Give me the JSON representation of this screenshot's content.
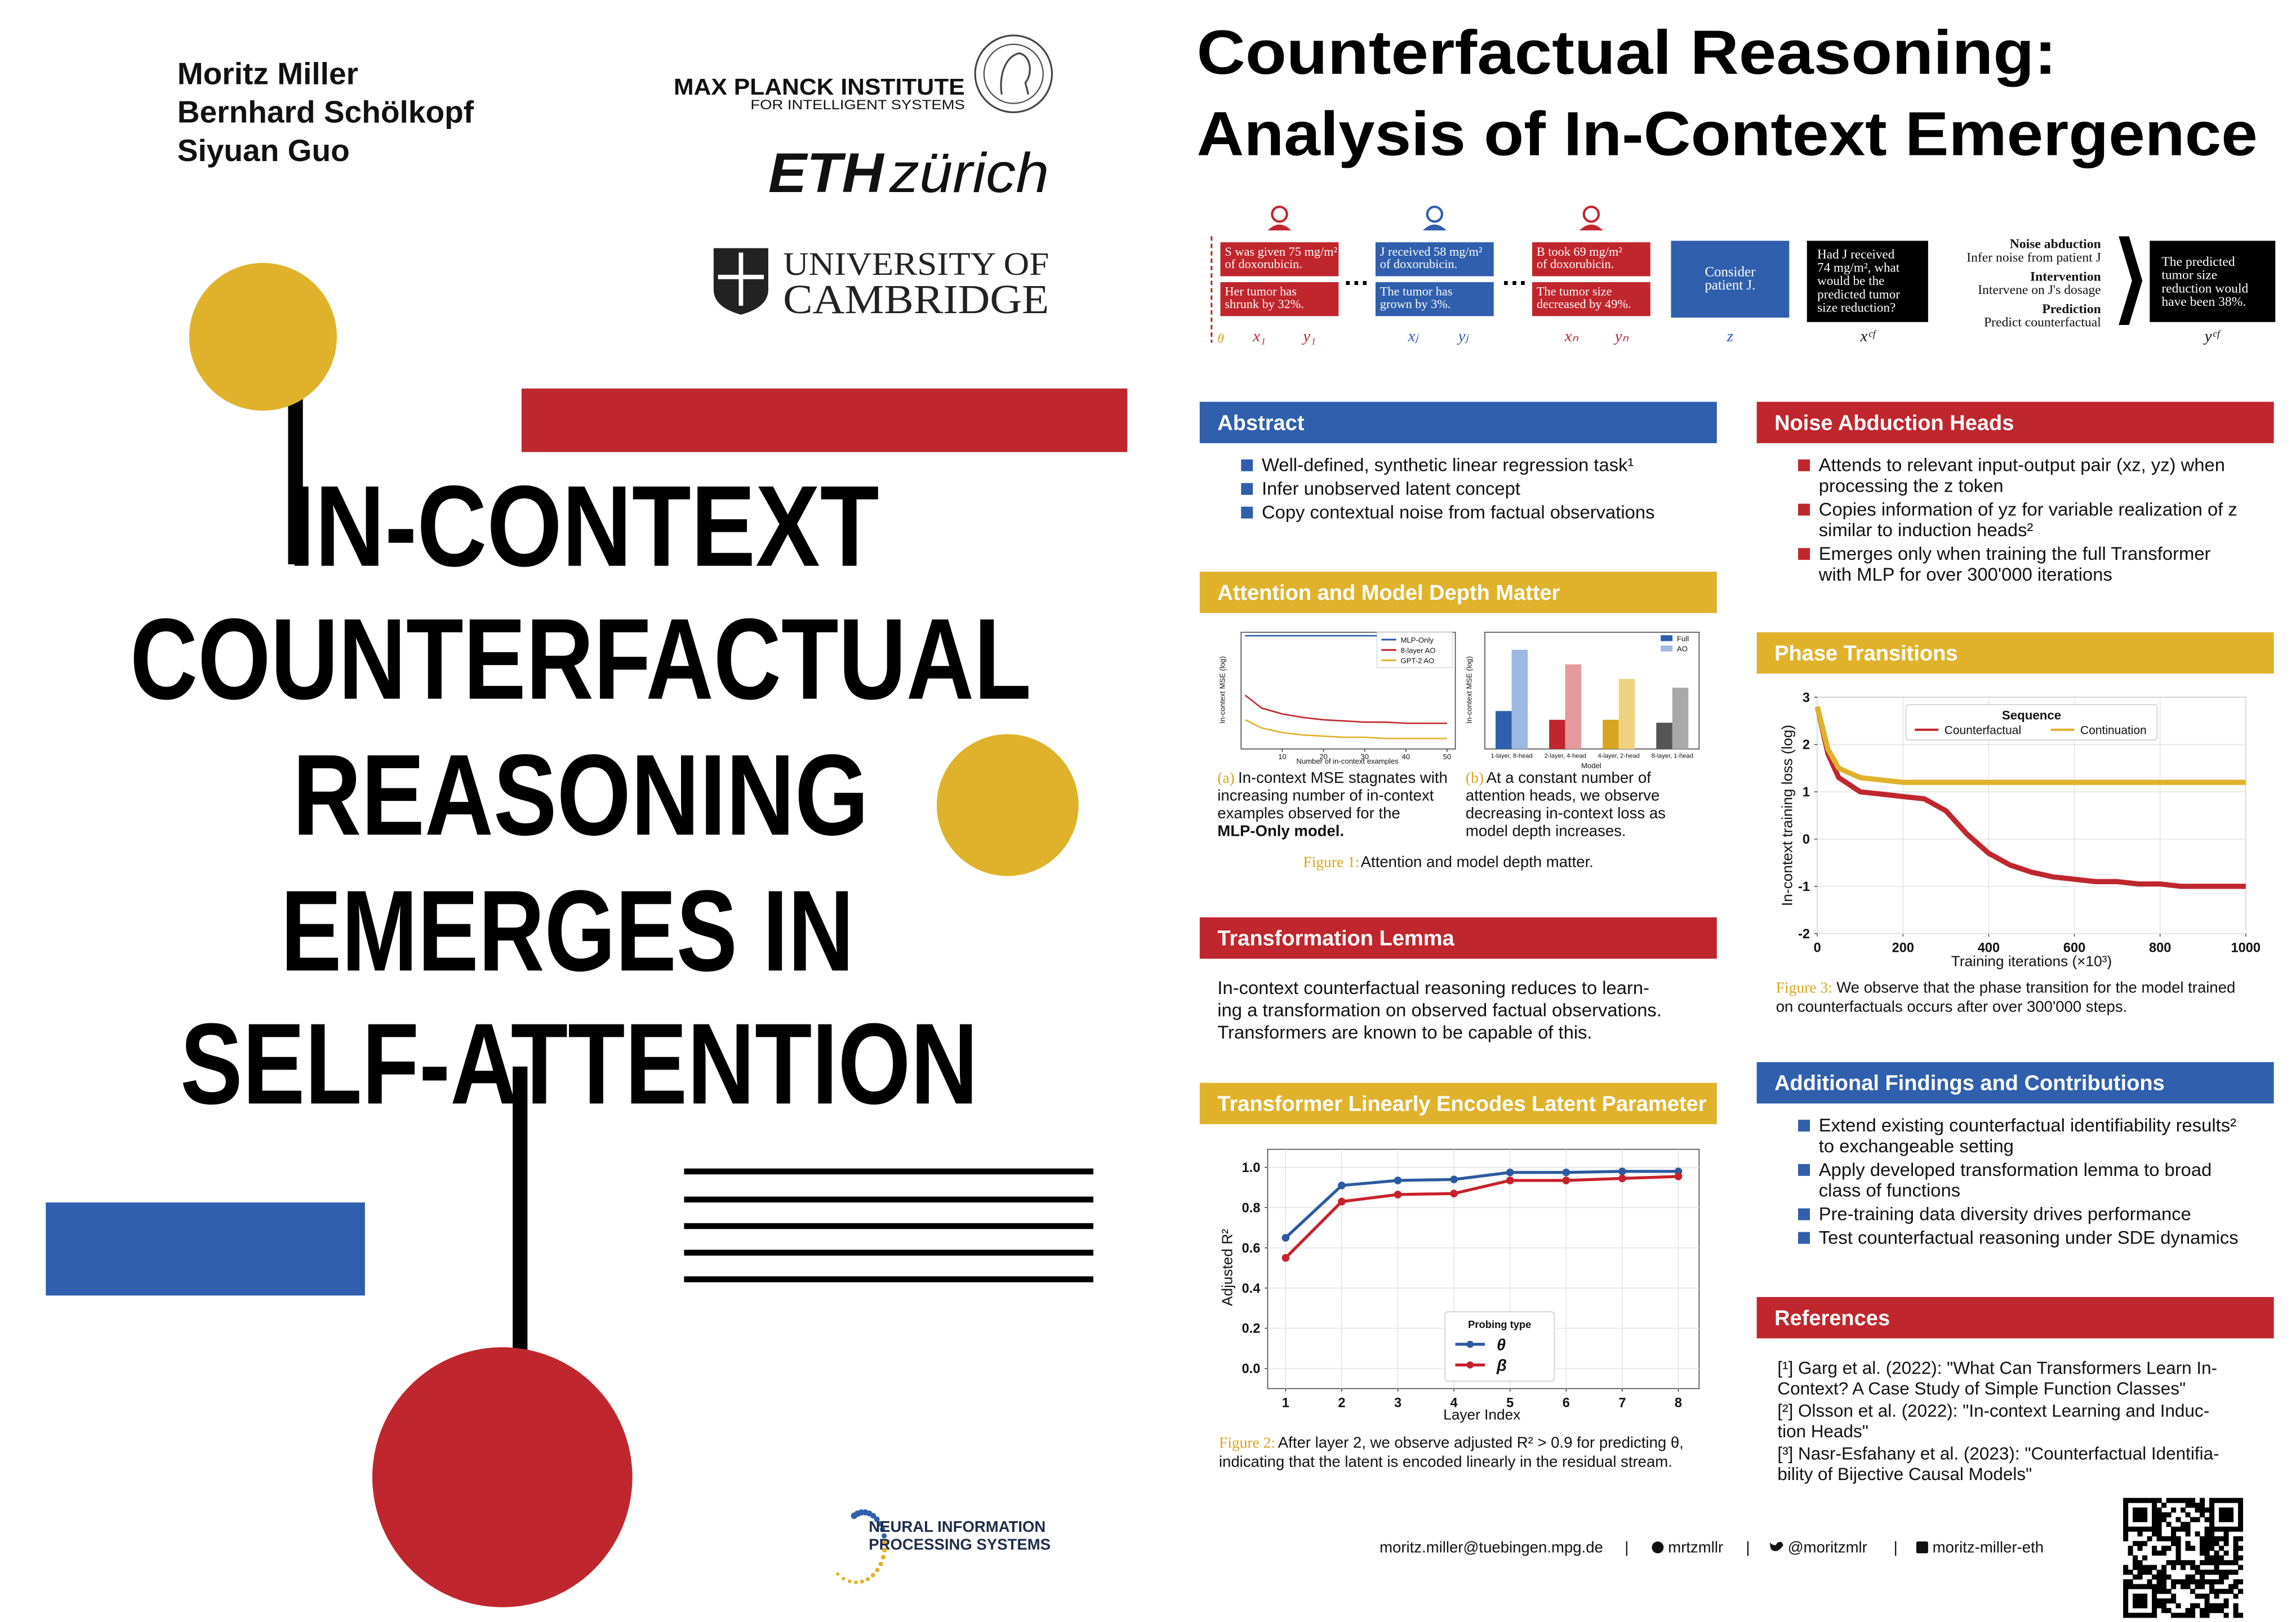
{
  "authors": [
    "Moritz Miller",
    "Bernhard Schölkopf",
    "Siyuan Guo"
  ],
  "logos": {
    "mpi": "MAX PLANCK INSTITUTE",
    "mpi_sub": "FOR INTELLIGENT SYSTEMS",
    "eth": "ETH",
    "eth_city": "zürich",
    "cam_1": "UNIVERSITY OF",
    "cam_2": "CAMBRIDGE",
    "neurips": [
      "NEURAL INFORMATION",
      "PROCESSING SYSTEMS"
    ]
  },
  "poster_title": [
    "IN-CONTEXT",
    "COUNTERFACTUAL",
    "REASONING",
    "EMERGES IN",
    "SELF-ATTENTION"
  ],
  "title": [
    "Counterfactual Reasoning:",
    "Analysis of In-Context Emergence"
  ],
  "header_figure": {
    "theta": "θ",
    "ellipsis": "…",
    "examples": [
      {
        "color": "#c0262d",
        "x": [
          "S was given 75 mg/m²",
          "of doxorubicin."
        ],
        "y": [
          "Her tumor has",
          "shrunk by 32%."
        ],
        "x_label": "x₁",
        "y_label": "y₁"
      },
      {
        "color": "#2f5fad",
        "x": [
          "J received 58 mg/m²",
          "of doxorubicin."
        ],
        "y": [
          "The tumor has",
          "grown by 3%."
        ],
        "x_label": "xⱼ",
        "y_label": "yⱼ"
      },
      {
        "color": "#c0262d",
        "x": [
          "B took 69 mg/m²",
          "of doxorubicin."
        ],
        "y": [
          "The tumor size",
          "decreased by 49%."
        ],
        "x_label": "xₙ",
        "y_label": "yₙ"
      }
    ],
    "query": {
      "text": [
        "Consider",
        "patient J."
      ],
      "label": "z"
    },
    "counterfactual": {
      "text": [
        "Had J received",
        "74 mg/m², what",
        "would be the",
        "predicted tumor",
        "size reduction?"
      ],
      "label": "xᶜᶠ"
    },
    "steps": [
      {
        "name": "Noise abduction",
        "text": "Infer noise from patient J"
      },
      {
        "name": "Intervention",
        "text": "Intervene on J's dosage"
      },
      {
        "name": "Prediction",
        "text": "Predict counterfactual"
      }
    ],
    "answer": {
      "text": [
        "The predicted",
        "tumor size",
        "reduction would",
        "have been 38%."
      ],
      "label": "yᶜᶠ"
    }
  },
  "sections": [
    {
      "heading": "Abstract",
      "color": "#2f5fad",
      "bullets": [
        [
          "Well-defined, synthetic linear regression task¹"
        ],
        [
          "Infer unobserved latent concept"
        ],
        [
          "Copy contextual noise from factual observations"
        ]
      ]
    },
    {
      "heading": "Attention and Model Depth Matter",
      "color": "#e0b22c",
      "subcaptions": [
        {
          "label": "(a)",
          "lines": [
            "In-context MSE stagnates with",
            "increasing number of in-context",
            "examples observed for the",
            "MLP-Only model."
          ]
        },
        {
          "label": "(b)",
          "lines": [
            "At a constant number of",
            "attention heads, we observe",
            "decreasing in-context loss as",
            "model depth increases."
          ]
        }
      ],
      "caption_label": "Figure 1:",
      "caption": [
        "Attention and model depth matter."
      ]
    },
    {
      "heading": "Transformation Lemma",
      "color": "#c0262d",
      "paragraph": [
        "In-context counterfactual reasoning reduces to learn-",
        "ing a transformation on observed factual observations.",
        "Transformers are known to be capable of this."
      ]
    },
    {
      "heading": "Transformer Linearly Encodes Latent Parameter",
      "color": "#e0b22c",
      "caption_label": "Figure 2:",
      "caption": [
        "After layer 2, we observe adjusted R² > 0.9 for predicting θ,",
        "indicating that the latent is encoded linearly in the residual stream."
      ]
    },
    {
      "heading": "Noise Abduction Heads",
      "color": "#c0262d",
      "bullets": [
        [
          "Attends to relevant input-output pair (xz, yz) when",
          "processing the z token"
        ],
        [
          "Copies information of yz for variable realization of z",
          "similar to induction heads²"
        ],
        [
          "Emerges only when training the full Transformer",
          "with MLP for over 300'000 iterations"
        ]
      ]
    },
    {
      "heading": "Phase Transitions",
      "color": "#e0b22c",
      "caption_label": "Figure 3:",
      "caption": [
        "We observe that the phase transition for the model trained",
        "on counterfactuals occurs after over 300'000 steps."
      ]
    },
    {
      "heading": "Additional Findings and Contributions",
      "color": "#2f5fad",
      "bullets": [
        [
          "Extend existing counterfactual identifiability results²",
          "to exchangeable setting"
        ],
        [
          "Apply developed transformation lemma to broad",
          "class of functions"
        ],
        [
          "Pre-training data diversity drives performance"
        ],
        [
          "Test counterfactual reasoning under SDE dynamics"
        ]
      ]
    },
    {
      "heading": "References",
      "color": "#c0262d",
      "refs": [
        [
          "[¹] Garg et al. (2022): \"What Can Transformers Learn In-",
          "Context? A Case Study of Simple Function Classes\""
        ],
        [
          "[²] Olsson et al. (2022): \"In-context Learning and Induc-",
          "tion Heads\""
        ],
        [
          "[³] Nasr-Esfahany et al. (2023): \"Counterfactual Identifia-",
          "bility of Bijective Causal Models\""
        ]
      ]
    }
  ],
  "footer": {
    "email": "moritz.miller@tuebingen.mpg.de",
    "github": "mrtzmllr",
    "twitter": "@moritzmlr",
    "linkedin": "moritz-miller-eth",
    "separator": "|"
  },
  "chart_data": [
    {
      "type": "line",
      "x_label": "Number of in-context examples",
      "y_label": "In-context MSE (log)",
      "x": [
        1,
        5,
        10,
        15,
        20,
        25,
        30,
        35,
        40,
        45,
        50
      ],
      "xlim": [
        0,
        52
      ],
      "xticks": [
        10,
        20,
        30,
        40,
        50
      ],
      "ylim": [
        0,
        10
      ],
      "grid": false,
      "markers": false,
      "series": [
        {
          "name": "MLP-Only",
          "color": "#2f5fad",
          "values": [
            9.7,
            9.7,
            9.7,
            9.7,
            9.7,
            9.7,
            9.7,
            9.7,
            9.7,
            9.7,
            9.7
          ]
        },
        {
          "name": "8-layer AO",
          "color": "#c0262d",
          "values": [
            4.6,
            3.5,
            3.0,
            2.7,
            2.5,
            2.4,
            2.3,
            2.3,
            2.2,
            2.2,
            2.2
          ]
        },
        {
          "name": "GPT-2 AO",
          "color": "#e0b22c",
          "values": [
            2.5,
            1.8,
            1.4,
            1.2,
            1.1,
            1.0,
            1.0,
            0.9,
            0.9,
            0.9,
            0.9
          ]
        }
      ]
    },
    {
      "type": "bar",
      "x_label": "Model",
      "y_label": "In-context MSE (log)",
      "categories": [
        "1-layer, 8-head",
        "2-layer, 4-head",
        "4-layer, 2-head",
        "8-layer, 1-head"
      ],
      "ylim": [
        0,
        4
      ],
      "series": [
        {
          "name": "Full",
          "color": "#2f5fad",
          "colors": [
            "#2f5fad",
            "#c0262d",
            "#d9a520",
            "#555555"
          ],
          "values": [
            1.3,
            1.0,
            1.0,
            0.9
          ]
        },
        {
          "name": "AO",
          "color": "#9db8e2",
          "colors": [
            "#9db8e2",
            "#e79a9d",
            "#f0d27e",
            "#a9a9a9"
          ],
          "values": [
            3.4,
            2.9,
            2.4,
            2.1
          ]
        }
      ]
    },
    {
      "type": "line",
      "x_label": "Layer Index",
      "y_label": "Adjusted R²",
      "legend_title": "Probing type",
      "x": [
        1,
        2,
        3,
        4,
        5,
        6,
        7,
        8
      ],
      "xlim": [
        0.68,
        8.37
      ],
      "xticks": [
        1,
        2,
        3,
        4,
        5,
        6,
        7,
        8
      ],
      "ylim": [
        -0.1,
        1.09
      ],
      "yticks": [
        {
          "value": 0,
          "label": "0.0"
        },
        0.2,
        0.4,
        0.6,
        0.8,
        {
          "value": 1,
          "label": "1.0"
        }
      ],
      "grid": true,
      "markers": true,
      "series": [
        {
          "name": "θ",
          "color": "#2c5aa0",
          "values": [
            0.65,
            0.91,
            0.935,
            0.94,
            0.975,
            0.975,
            0.98,
            0.98
          ]
        },
        {
          "name": "β",
          "color": "#c8202a",
          "values": [
            0.55,
            0.83,
            0.865,
            0.87,
            0.935,
            0.935,
            0.945,
            0.955
          ]
        }
      ]
    },
    {
      "type": "line",
      "x_label": "Training iterations (×10³)",
      "y_label": "In-context training loss (log)",
      "legend_title": "Sequence",
      "x": [
        0,
        25,
        50,
        100,
        150,
        200,
        250,
        300,
        350,
        400,
        450,
        500,
        550,
        600,
        650,
        700,
        750,
        800,
        850,
        900,
        950,
        1000
      ],
      "xlim": [
        0,
        1000
      ],
      "xticks": [
        0,
        200,
        400,
        600,
        800,
        1000
      ],
      "ylim": [
        -2,
        3
      ],
      "yticks": [
        3,
        2,
        1,
        0,
        -1,
        -2
      ],
      "grid": true,
      "markers": false,
      "series": [
        {
          "name": "Counterfactual",
          "color": "#c0262d",
          "values": [
            2.8,
            1.8,
            1.3,
            1.0,
            0.95,
            0.9,
            0.85,
            0.6,
            0.1,
            -0.3,
            -0.55,
            -0.7,
            -0.8,
            -0.85,
            -0.9,
            -0.9,
            -0.95,
            -0.95,
            -1,
            -1,
            -1,
            -1
          ]
        },
        {
          "name": "Continuation",
          "color": "#e0b22c",
          "values": [
            2.8,
            1.9,
            1.5,
            1.3,
            1.25,
            1.2,
            1.2,
            1.2,
            1.2,
            1.2,
            1.2,
            1.2,
            1.2,
            1.2,
            1.2,
            1.2,
            1.2,
            1.2,
            1.2,
            1.2,
            1.2,
            1.2
          ]
        }
      ]
    }
  ]
}
